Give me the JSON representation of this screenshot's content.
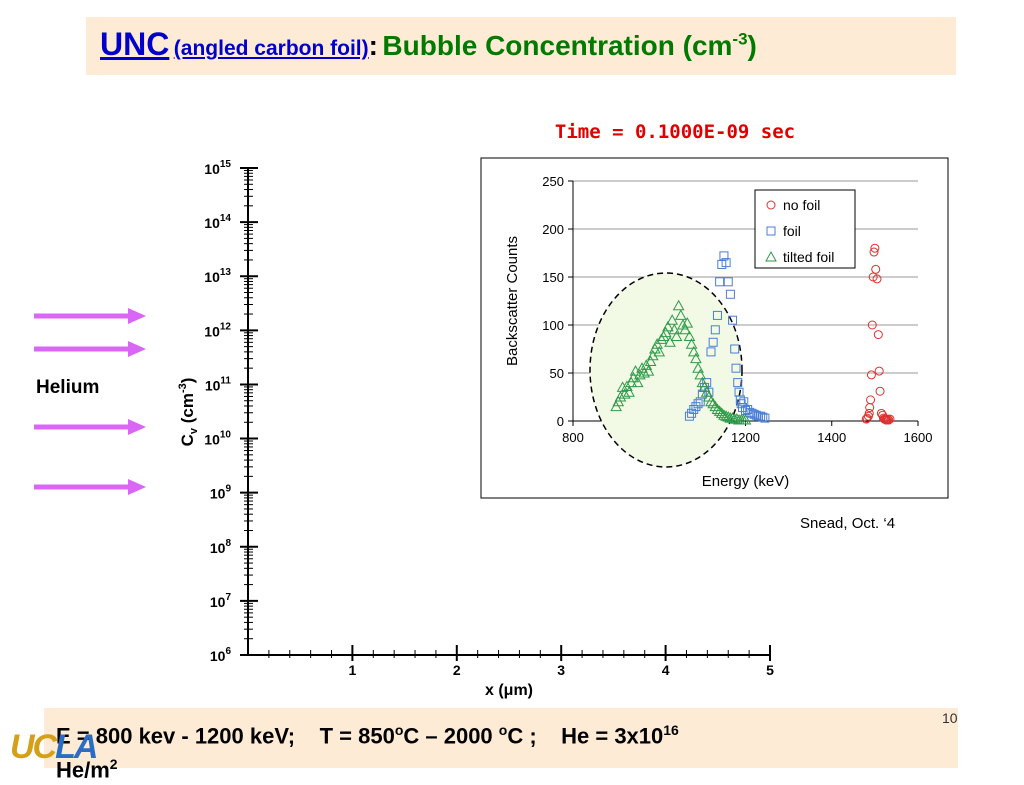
{
  "slide": {
    "title_unc": "UNC",
    "title_sub": "(angled carbon foil)",
    "title_colon": ":",
    "title_main": "Bubble Concentration (cm",
    "title_main_sup": "-3",
    "title_main_end": ")",
    "sim_time": "Time = 0.1000E-09 sec",
    "credit": "Snead, Oct. ‘4",
    "helium_label": "Helium",
    "footer": {
      "energy": "E = 800 kev - 1200 keV;",
      "temperature_a": "T = 850",
      "temperature_b": "C – 2000 ",
      "temperature_c": "C ;",
      "degree_sup": "o",
      "helium_a": "He = 3x10",
      "helium_sup": "16",
      "helium_b": "He/m",
      "helium_sup2": "2"
    },
    "page_number": "10",
    "logo_u": "UC",
    "logo_la": "LA"
  },
  "colors": {
    "title_blue": "#0000cc",
    "title_green": "#007a00",
    "sim_red": "#e00000",
    "arrow_violet": "#d966f5",
    "no_foil": "#e03030",
    "foil": "#4a7fd6",
    "tilted_foil": "#2e9a4a",
    "highlight_fill": "#f2f9e4"
  },
  "chart_data": [
    {
      "type": "scatter",
      "title": "",
      "xlabel": "x (μm)",
      "ylabel": "C",
      "ylabel_sub": "v",
      "ylabel_unit": "(cm",
      "ylabel_unit_sup": "-3",
      "ylabel_unit_end": ")",
      "xlim": [
        0,
        5
      ],
      "y_scale": "log",
      "ylim": [
        1000000,
        1000000000000000
      ],
      "x_ticks": [
        "1",
        "2",
        "3",
        "4",
        "5"
      ],
      "y_ticks": [
        {
          "base": "10",
          "exp": "15"
        },
        {
          "base": "10",
          "exp": "14"
        },
        {
          "base": "10",
          "exp": "13"
        },
        {
          "base": "10",
          "exp": "12"
        },
        {
          "base": "10",
          "exp": "11"
        },
        {
          "base": "10",
          "exp": "10"
        },
        {
          "base": "10",
          "exp": "9"
        },
        {
          "base": "10",
          "exp": "8"
        },
        {
          "base": "10",
          "exp": "7"
        },
        {
          "base": "10",
          "exp": "6"
        }
      ],
      "series": [],
      "grid": false,
      "legend": "none"
    },
    {
      "type": "scatter",
      "title": "",
      "xlabel": "Energy (keV)",
      "ylabel": "Backscatter Counts",
      "xlim": [
        800,
        1600
      ],
      "ylim": [
        0,
        250
      ],
      "x_ticks": [
        800,
        1000,
        1200,
        1400,
        1600
      ],
      "y_ticks": [
        0,
        50,
        100,
        150,
        200,
        250
      ],
      "grid": true,
      "legend": "top-right",
      "series": [
        {
          "name": "no foil",
          "marker": "circle",
          "color": "#e03030",
          "x": [
            1480,
            1482,
            1485,
            1487,
            1488,
            1490,
            1492,
            1494,
            1496,
            1498,
            1500,
            1502,
            1505,
            1508,
            1510,
            1512,
            1515,
            1518,
            1520,
            1522,
            1524,
            1526,
            1528,
            1530,
            1532,
            1535
          ],
          "y": [
            2,
            3,
            5,
            8,
            14,
            22,
            48,
            100,
            150,
            176,
            180,
            158,
            148,
            90,
            52,
            31,
            8,
            6,
            3,
            2,
            2,
            1,
            1,
            2,
            1,
            2
          ]
        },
        {
          "name": "foil",
          "marker": "square",
          "color": "#4a7fd6",
          "x": [
            1070,
            1075,
            1080,
            1085,
            1090,
            1095,
            1100,
            1105,
            1110,
            1115,
            1120,
            1125,
            1130,
            1135,
            1140,
            1145,
            1150,
            1155,
            1160,
            1165,
            1170,
            1175,
            1178,
            1182,
            1185,
            1188,
            1190,
            1193,
            1196,
            1200,
            1205,
            1210,
            1215,
            1220,
            1225,
            1230,
            1235,
            1240,
            1245
          ],
          "y": [
            5,
            8,
            12,
            15,
            18,
            20,
            28,
            35,
            40,
            30,
            72,
            82,
            95,
            110,
            145,
            163,
            172,
            165,
            145,
            132,
            105,
            75,
            55,
            40,
            30,
            22,
            18,
            14,
            20,
            11,
            12,
            9,
            8,
            7,
            6,
            5,
            5,
            4,
            3
          ]
        },
        {
          "name": "tilted foil",
          "marker": "triangle",
          "color": "#2e9a4a",
          "x": [
            900,
            905,
            910,
            915,
            920,
            925,
            930,
            935,
            940,
            945,
            950,
            955,
            960,
            965,
            970,
            975,
            980,
            985,
            990,
            995,
            1000,
            1005,
            1010,
            1015,
            1020,
            1025,
            1030,
            1035,
            1040,
            1045,
            1050,
            1055,
            1060,
            1065,
            1070,
            1075,
            1080,
            1085,
            1090,
            1095,
            1100,
            1105,
            1110,
            1115,
            1120,
            1125,
            1130,
            1135,
            1140,
            1145,
            1150,
            1155,
            1160,
            1165,
            1170,
            1175,
            1180,
            1185,
            1190,
            1195,
            1200
          ],
          "y": [
            15,
            20,
            25,
            35,
            28,
            36,
            30,
            40,
            45,
            52,
            40,
            48,
            55,
            50,
            58,
            52,
            62,
            68,
            75,
            80,
            72,
            85,
            88,
            92,
            98,
            82,
            105,
            95,
            88,
            120,
            110,
            100,
            95,
            102,
            88,
            80,
            72,
            65,
            55,
            48,
            40,
            35,
            30,
            25,
            20,
            18,
            15,
            12,
            10,
            8,
            6,
            5,
            4,
            3,
            3,
            2,
            2,
            1,
            1,
            1,
            1
          ]
        }
      ]
    }
  ]
}
